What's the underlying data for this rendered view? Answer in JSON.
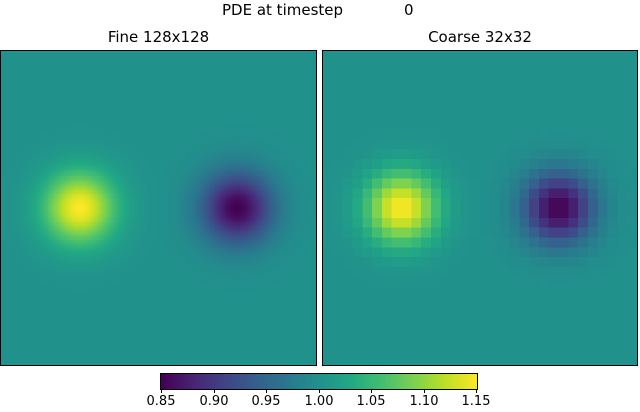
{
  "figure": {
    "title_label": "PDE at timestep",
    "timestep": "0"
  },
  "panels": [
    {
      "title": "Fine 128x128"
    },
    {
      "title": "Coarse 32x32"
    }
  ],
  "colormap": "viridis",
  "colorbar": {
    "vmin": 0.85,
    "vmax": 1.15,
    "ticks": [
      "0.85",
      "0.90",
      "0.95",
      "1.00",
      "1.05",
      "1.10",
      "1.15"
    ]
  },
  "chart_data": [
    {
      "type": "heatmap",
      "title": "Fine 128x128",
      "resolution": [
        128,
        128
      ],
      "field": "1 + 0.15*exp(-((x-0.25)^2+(y-0.5)^2)/(2*0.08^2)) - 0.15*exp(-((x-0.75)^2+(y-0.5)^2)/(2*0.08^2))",
      "base_value": 1.0,
      "features": [
        {
          "kind": "maximum",
          "x": 0.25,
          "y": 0.5,
          "value": 1.15
        },
        {
          "kind": "minimum",
          "x": 0.75,
          "y": 0.5,
          "value": 0.85
        }
      ],
      "clim": [
        0.85,
        1.15
      ]
    },
    {
      "type": "heatmap",
      "title": "Coarse 32x32",
      "resolution": [
        32,
        32
      ],
      "field": "same field sampled on 32x32 grid",
      "base_value": 1.0,
      "features": [
        {
          "kind": "maximum",
          "x": 0.25,
          "y": 0.5,
          "value": 1.15
        },
        {
          "kind": "minimum",
          "x": 0.75,
          "y": 0.5,
          "value": 0.85
        }
      ],
      "clim": [
        0.85,
        1.15
      ]
    }
  ]
}
